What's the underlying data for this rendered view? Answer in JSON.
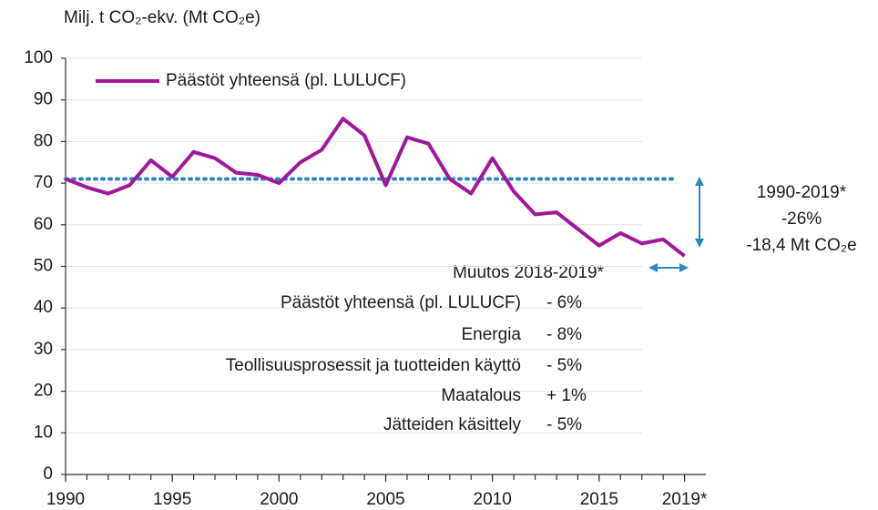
{
  "chart_data": {
    "type": "line",
    "y_label": "Milj. t CO₂-ekv. (Mt CO₂e)",
    "x": [
      1990,
      1991,
      1992,
      1993,
      1994,
      1995,
      1996,
      1997,
      1998,
      1999,
      2000,
      2001,
      2002,
      2003,
      2004,
      2005,
      2006,
      2007,
      2008,
      2009,
      2010,
      2011,
      2012,
      2013,
      2014,
      2015,
      2016,
      2017,
      2018,
      2019
    ],
    "series": [
      {
        "name": "Päästöt yhteensä (pl. LULUCF)",
        "color": "#a0179b",
        "values": [
          71,
          69,
          67.5,
          69.5,
          75.5,
          71.5,
          77.5,
          76,
          72.5,
          72,
          70,
          75,
          78,
          85.5,
          81.5,
          69.5,
          81,
          79.5,
          71,
          67.5,
          76,
          68,
          62.5,
          63,
          59,
          55,
          58,
          55.5,
          56.5,
          52.5
        ]
      }
    ],
    "reference_line": {
      "value": 71,
      "color": "#2e86c1"
    },
    "xlim": [
      1990,
      2020
    ],
    "xticks": [
      1990,
      1995,
      2000,
      2005,
      2010,
      2015,
      {
        "value": 2019,
        "label": "2019*"
      }
    ],
    "ylim": [
      0,
      100
    ],
    "yticks": [
      0,
      10,
      20,
      30,
      40,
      50,
      60,
      70,
      80,
      90,
      100
    ],
    "grid": true,
    "legend": "top-left",
    "annotations": {
      "period": "1990-2019*",
      "percent": "-26%",
      "amount": "-18,4 Mt CO₂e",
      "change_title": "Muutos 2018-2019*",
      "change_rows": [
        [
          "Päästöt yhteensä (pl. LULUCF)",
          "- 6%"
        ],
        [
          "Energia",
          "- 8%"
        ],
        [
          "Teollisuusprosessit ja tuotteiden käyttö",
          "- 5%"
        ],
        [
          "Maatalous",
          "+ 1%"
        ],
        [
          "Jätteiden käsittely",
          "- 5%"
        ]
      ]
    }
  }
}
